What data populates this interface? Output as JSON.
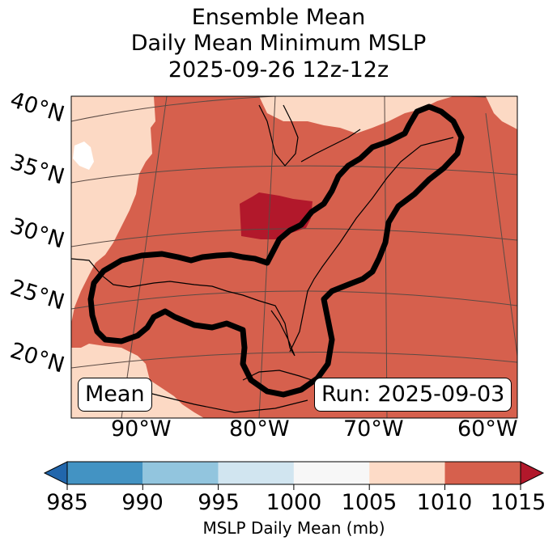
{
  "title": {
    "line1": "Ensemble Mean",
    "line2": "Daily Mean Minimum MSLP",
    "line3": "2025-09-26 12z-12z"
  },
  "map": {
    "lat_labels": [
      "40°N",
      "35°N",
      "30°N",
      "25°N",
      "20°N"
    ],
    "lon_labels": [
      "90°W",
      "80°W",
      "70°W",
      "60°W"
    ],
    "mean_box": "Mean",
    "run_box": "Run: 2025-09-03",
    "fill_colors": {
      "bin_1005_1010": "#fcd9c4",
      "bin_1010_1015": "#d6604d",
      "bin_above_1015": "#b2182b",
      "land_outline": "#000000",
      "contour": "#000000"
    }
  },
  "colorbar": {
    "ticks": [
      "985",
      "990",
      "995",
      "1000",
      "1005",
      "1010",
      "1015"
    ],
    "colors": [
      "#2166ac",
      "#4393c3",
      "#92c5de",
      "#d1e5f0",
      "#f7f7f7",
      "#fddbc7",
      "#d6604d",
      "#b2182b"
    ],
    "label": "MSLP Daily Mean (mb)"
  }
}
